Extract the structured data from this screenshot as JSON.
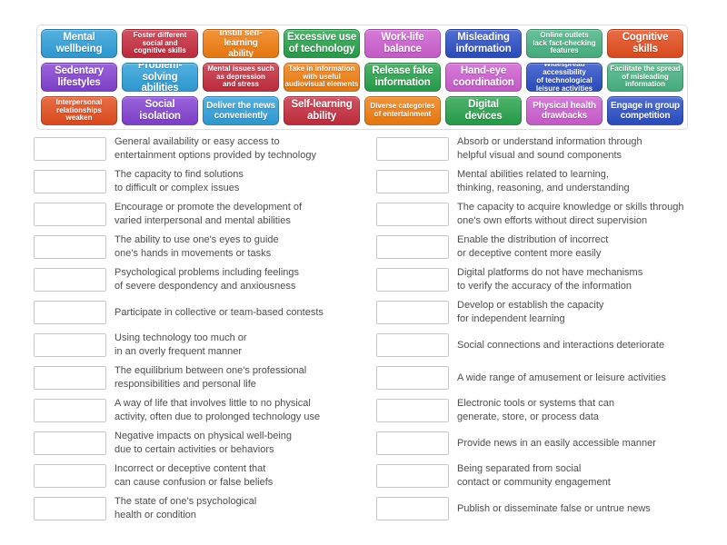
{
  "activity": {
    "tiles": [
      {
        "label": "Mental\nwellbeing",
        "color": "#2f9fd9",
        "size": "lg"
      },
      {
        "label": "Foster different\nsocial and\ncognitive skills",
        "color": "#c52d3f",
        "size": "sm"
      },
      {
        "label": "Instill self-learning\nability",
        "color": "#f07d10",
        "size": "md"
      },
      {
        "label": "Excessive use\nof technology",
        "color": "#27a24b",
        "size": "lg"
      },
      {
        "label": "Work-life\nbalance",
        "color": "#cd5ed0",
        "size": "lg"
      },
      {
        "label": "Misleading\ninformation",
        "color": "#2b4fc5",
        "size": "lg"
      },
      {
        "label": "Online outlets\nlack fact-checking\nfeatures",
        "color": "#47b382",
        "size": "sm"
      },
      {
        "label": "Cognitive\nskills",
        "color": "#e34d1e",
        "size": "lg"
      },
      {
        "label": "Sedentary\nlifestyles",
        "color": "#8341d2",
        "size": "lg"
      },
      {
        "label": "Problem-solving\nabilities",
        "color": "#2f9fd9",
        "size": "lg"
      },
      {
        "label": "Mental issues such\nas depression\nand stress",
        "color": "#c52d3f",
        "size": "sm"
      },
      {
        "label": "Take in information\nwith useful\naudiovisual elements",
        "color": "#f07d10",
        "size": "sm"
      },
      {
        "label": "Release fake\ninformation",
        "color": "#27a24b",
        "size": "lg"
      },
      {
        "label": "Hand-eye\ncoordination",
        "color": "#cd5ed0",
        "size": "lg"
      },
      {
        "label": "Widespread accessibility\nof technological\nleisure activities",
        "color": "#2b4fc5",
        "size": "sm"
      },
      {
        "label": "Facilitate the spread\nof misleading\ninformation",
        "color": "#47b382",
        "size": "sm"
      },
      {
        "label": "Interpersonal\nrelationships\nweaken",
        "color": "#e34d1e",
        "size": "sm"
      },
      {
        "label": "Social\nisolation",
        "color": "#8341d2",
        "size": "lg"
      },
      {
        "label": "Deliver the news\nconveniently",
        "color": "#2f9fd9",
        "size": "md"
      },
      {
        "label": "Self-learning\nability",
        "color": "#c52d3f",
        "size": "lg"
      },
      {
        "label": "Diverse categories\nof entertainment",
        "color": "#f07d10",
        "size": "sm"
      },
      {
        "label": "Digital\ndevices",
        "color": "#27a24b",
        "size": "lg"
      },
      {
        "label": "Physical health\ndrawbacks",
        "color": "#cd5ed0",
        "size": "md"
      },
      {
        "label": "Engage in group\ncompetition",
        "color": "#2b4fc5",
        "size": "md"
      }
    ],
    "columns": {
      "left": [
        "General availability or easy access to\nentertainment options provided by technology",
        "The capacity to find solutions\nto difficult or complex issues",
        "Encourage or promote the development of\nvaried interpersonal and mental abilities",
        "The ability to use one's eyes to guide\none's hands in movements or tasks",
        "Psychological problems including feelings\nof severe despondency and anxiousness",
        "Participate in collective or team-based contests",
        "Using technology too much or\nin an overly frequent manner",
        "The equilibrium between one's professional\nresponsibilities and personal life",
        "A way of life that involves little to no physical\nactivity, often due to prolonged technology use",
        "Negative impacts on physical well-being\ndue to certain activities or behaviors",
        "Incorrect or deceptive content that\ncan cause confusion or false beliefs",
        "The state of one's psychological\nhealth or condition"
      ],
      "right": [
        "Absorb or understand information through\nhelpful visual and sound components",
        "Mental abilities related to learning,\nthinking, reasoning, and understanding",
        "The capacity to acquire knowledge or skills through\none's own efforts without direct supervision",
        "Enable the distribution of incorrect\nor deceptive content more easily",
        "Digital platforms do not have mechanisms\nto verify the accuracy of the information",
        "Develop or establish the capacity\nfor independent learning",
        "Social connections and interactions deteriorate",
        "A wide range of amusement or leisure activities",
        "Electronic tools or systems that can\ngenerate, store, or process data",
        "Provide news in an easily accessible manner",
        "Being separated from social\ncontact or community engagement",
        "Publish or disseminate false or untrue news"
      ]
    }
  }
}
